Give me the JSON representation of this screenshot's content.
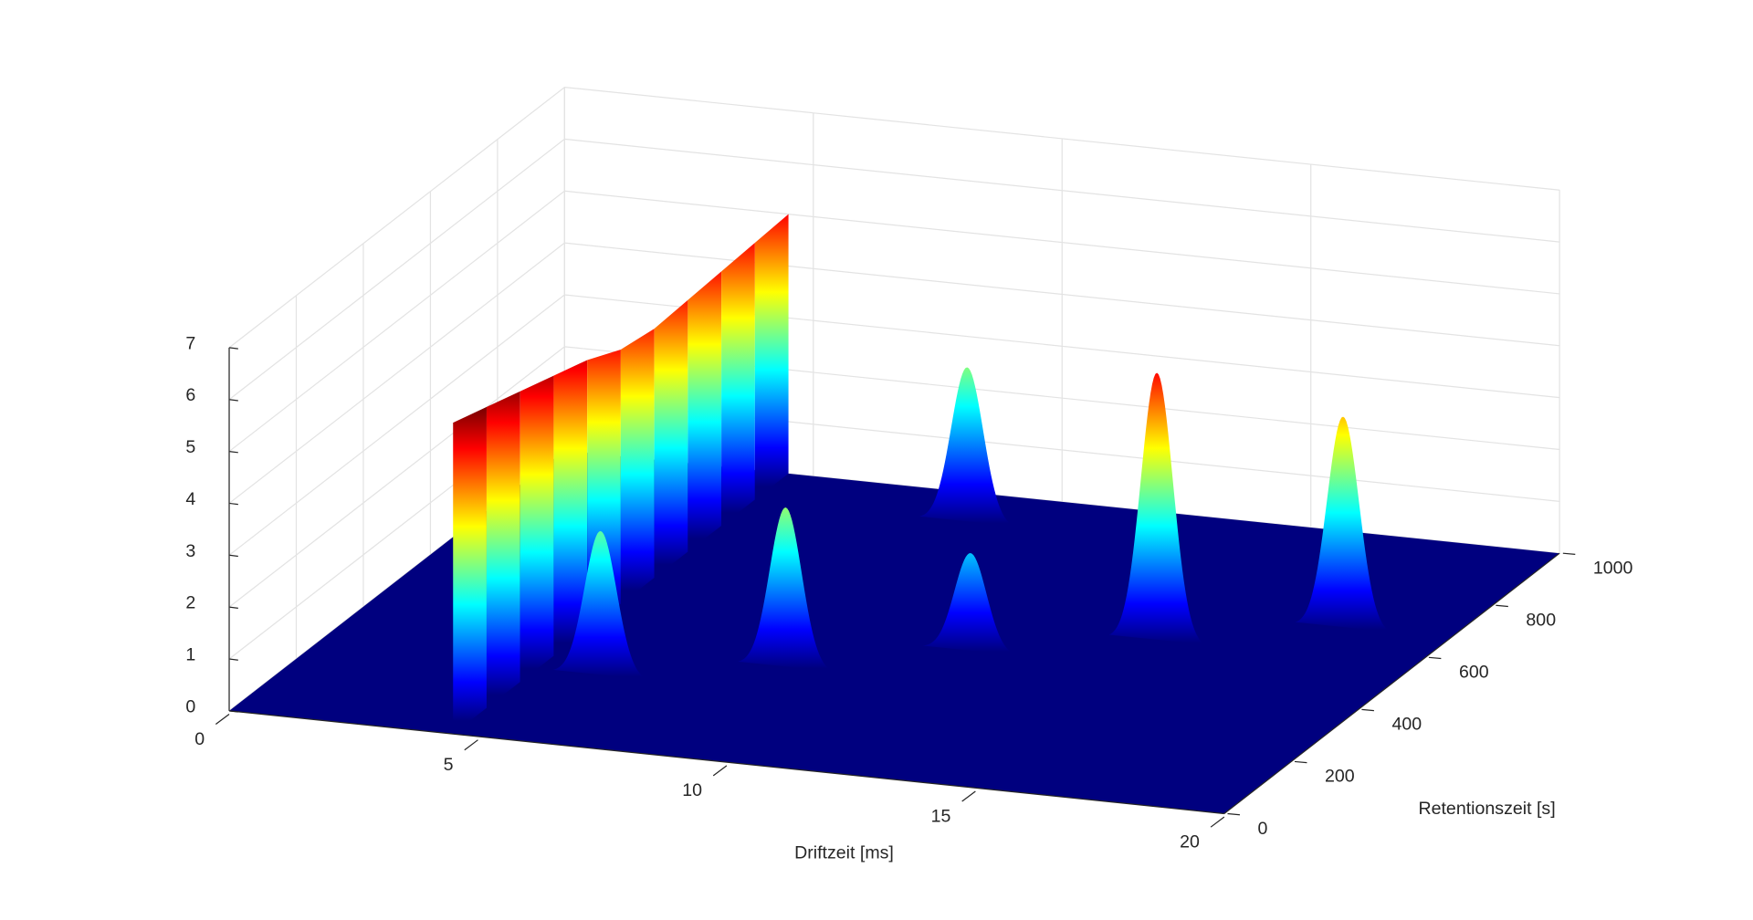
{
  "chart_data": {
    "type": "surface3d",
    "xlabel": "Driftzeit [ms]",
    "ylabel": "Retentionszeit [s]",
    "xlim": [
      0,
      20
    ],
    "xticks": [
      0,
      5,
      10,
      15,
      20
    ],
    "ylim": [
      0,
      1000
    ],
    "yticks": [
      0,
      200,
      400,
      600,
      800,
      1000
    ],
    "zlim": [
      0,
      7
    ],
    "zticks": [
      0,
      1,
      2,
      3,
      4,
      5,
      6,
      7
    ],
    "colormap": "jet",
    "floor_color": "#00007f",
    "grid": true,
    "ridge": {
      "x": 4.5,
      "y": [
        0,
        100,
        200,
        300,
        400,
        500,
        600,
        700,
        800,
        900,
        1000
      ],
      "values": [
        6.0,
        5.8,
        5.6,
        5.4,
        5.2,
        4.9,
        4.8,
        4.85,
        4.9,
        4.95,
        5.0
      ]
    },
    "peaks": {
      "x": [
        5.8,
        8.9,
        11.8,
        8.8,
        14.9,
        17.9
      ],
      "y": [
        247,
        339,
        460,
        895,
        556,
        666
      ],
      "values": [
        2.8,
        3.1,
        1.9,
        3.0,
        5.2,
        4.1
      ]
    }
  }
}
